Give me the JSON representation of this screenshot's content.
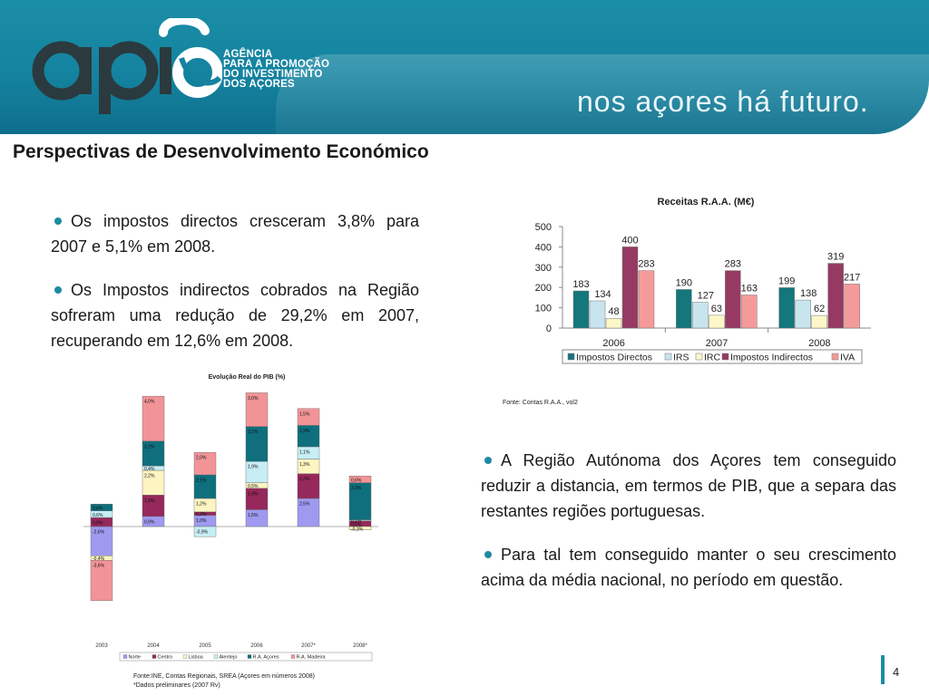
{
  "header": {
    "logo_text": "apia",
    "agency_lines": [
      "AGÊNCIA",
      "PARA A PROMOÇÃO",
      "DO INVESTIMENTO",
      "DOS AÇORES"
    ],
    "slogan": "nos açores há futuro."
  },
  "title": "Perspectivas de Desenvolvimento Económico",
  "left_bullets": [
    "Os impostos directos cresceram 3,8% para 2007 e 5,1% em 2008.",
    "Os Impostos indirectos cobrados na Região sofreram uma redução de 29,2% em 2007, recuperando em 12,6% em 2008."
  ],
  "right_bullets": [
    "A Região Autónoma dos Açores tem conseguido reduzir a distancia, em termos de PIB, que a separa das restantes regiões portuguesas.",
    "Para tal tem conseguido manter o seu crescimento acima da média nacional, no período em questão."
  ],
  "page_number": "4",
  "colors": {
    "accent": "#1d8ba3",
    "banner": "#1483a0"
  },
  "chart_data": [
    {
      "type": "bar",
      "title": "Receitas R.A.A. (M€)",
      "categories": [
        "2006",
        "2007",
        "2008"
      ],
      "ylim": [
        0,
        500
      ],
      "yticks": [
        "0",
        "100",
        "200",
        "300",
        "400",
        "500"
      ],
      "legend": "bottom",
      "grid": false,
      "series": [
        {
          "name": "Impostos Directos",
          "color": "#13777c",
          "values": [
            183,
            190,
            199
          ],
          "labels": [
            "183",
            "190",
            "199"
          ]
        },
        {
          "name": "IRS",
          "color": "#c8e4ef",
          "values": [
            134,
            127,
            138
          ],
          "labels": [
            "134",
            "127",
            "138"
          ]
        },
        {
          "name": "IRC",
          "color": "#fdf7c8",
          "values": [
            48,
            63,
            62
          ],
          "labels": [
            "48",
            "63",
            "62"
          ]
        },
        {
          "name": "Impostos Indirectos",
          "color": "#973a63",
          "values": [
            400,
            283,
            319
          ],
          "labels": [
            "400",
            "283",
            "319"
          ]
        },
        {
          "name": "IVA",
          "color": "#f59a9a",
          "values": [
            283,
            163,
            217
          ],
          "labels": [
            "283",
            "163",
            "217"
          ]
        }
      ],
      "source": "Fonte: Contas R.A.A., vol2"
    },
    {
      "type": "stacked-bar",
      "title": "Evolução Real do PIB (%)",
      "categories": [
        "2003",
        "2004",
        "2005",
        "2006",
        "2007*",
        "2008*"
      ],
      "legend": "bottom",
      "grid": false,
      "series": [
        {
          "name": "Norte",
          "color": "#9f9af0",
          "values": [
            -2.6,
            0.9,
            1.0,
            1.5,
            2.5,
            null
          ],
          "labels": [
            "-2,6%",
            "0,9%",
            "1,0%",
            "1,5%",
            "2,5%",
            ""
          ]
        },
        {
          "name": "Centro",
          "color": "#96285b",
          "values": [
            0.8,
            1.9,
            0.3,
            1.9,
            2.2,
            0.5
          ],
          "labels": [
            "0,8%",
            "1,9%",
            "0,3%",
            "1,9%",
            "2,2%",
            "0,5%"
          ]
        },
        {
          "name": "Lisboa",
          "color": "#fdf4c2",
          "values": [
            -0.4,
            2.2,
            1.2,
            0.5,
            1.3,
            -0.3
          ],
          "labels": [
            "-0,4%",
            "2,2%",
            "1,2%",
            "0,5%",
            "1,3%",
            "-0,3%"
          ]
        },
        {
          "name": "Alentejo",
          "color": "#c7eef5",
          "values": [
            0.6,
            0.4,
            -0.9,
            1.9,
            1.1,
            0.1
          ],
          "labels": [
            "0,6%",
            "0,4%",
            "-0,9%",
            "1,9%",
            "1,1%",
            "0,1%"
          ]
        },
        {
          "name": "R.A. Açores",
          "color": "#0f6f7d",
          "values": [
            0.6,
            2.2,
            2.1,
            3.1,
            1.9,
            3.3
          ],
          "labels": [
            "0,6%",
            "2,2%",
            "2,1%",
            "3,1%",
            "1,9%",
            "3,3%"
          ]
        },
        {
          "name": "R.A. Madeira",
          "color": "#f29497",
          "values": [
            -3.6,
            4.0,
            2.0,
            3.0,
            1.5,
            0.6
          ],
          "labels": [
            "-3,6%",
            "4,0%",
            "2,0%",
            "3,0%",
            "1,5%",
            "0,6%"
          ]
        }
      ],
      "source_lines": [
        "Fonte:INE, Contas Regionais, SREA (Açores em números 2008)",
        "*Dados preliminares (2007 Rv)"
      ]
    }
  ]
}
